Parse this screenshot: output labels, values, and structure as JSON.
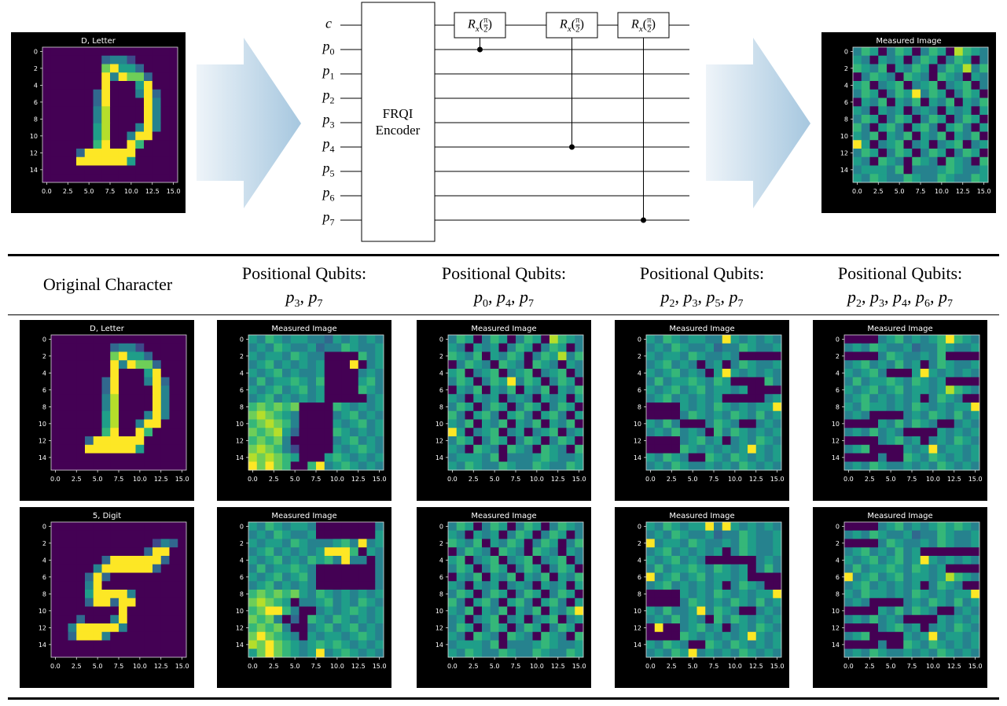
{
  "circuit": {
    "wires": [
      {
        "symbol": "c"
      },
      {
        "symbol": "p",
        "index": "0"
      },
      {
        "symbol": "p",
        "index": "1"
      },
      {
        "symbol": "p",
        "index": "2"
      },
      {
        "symbol": "p",
        "index": "3"
      },
      {
        "symbol": "p",
        "index": "4"
      },
      {
        "symbol": "p",
        "index": "5"
      },
      {
        "symbol": "p",
        "index": "6"
      },
      {
        "symbol": "p",
        "index": "7"
      }
    ],
    "encoder": [
      "FRQI",
      "Encoder"
    ],
    "gate": {
      "symbol": "R",
      "sub": "x",
      "open": "(",
      "num": "π",
      "den": "2",
      "close": ")"
    },
    "gates": [
      {
        "control": 1
      },
      {
        "control": 5
      },
      {
        "control": 8
      }
    ]
  },
  "axes": {
    "yticks": [
      0,
      2,
      4,
      6,
      8,
      10,
      12,
      14
    ],
    "xticks": [
      {
        "value": 0,
        "label": "0.0"
      },
      {
        "value": 2.5,
        "label": "2.5"
      },
      {
        "value": 5,
        "label": "5.0"
      },
      {
        "value": 7.5,
        "label": "7.5"
      },
      {
        "value": 10,
        "label": "10.0"
      },
      {
        "value": 12.5,
        "label": "12.5"
      },
      {
        "value": 15,
        "label": "15.0"
      }
    ]
  },
  "top_panels": [
    {
      "title": "D, Letter",
      "image": "D"
    },
    {
      "title": "Measured Image",
      "image": "m2"
    }
  ],
  "qubit_symbol": "p",
  "separator": ", ",
  "headers": [
    {
      "title": "Original Character"
    },
    {
      "title": "Positional Qubits:",
      "qubits": [
        "3",
        "7"
      ]
    },
    {
      "title": "Positional Qubits:",
      "qubits": [
        "0",
        "4",
        "7"
      ]
    },
    {
      "title": "Positional Qubits:",
      "qubits": [
        "2",
        "3",
        "5",
        "7"
      ]
    },
    {
      "title": "Positional Qubits:",
      "qubits": [
        "2",
        "3",
        "4",
        "6",
        "7"
      ]
    }
  ],
  "rows": [
    [
      {
        "title": "D, Letter",
        "image": "D"
      },
      {
        "title": "Measured Image",
        "image": "m1"
      },
      {
        "title": "Measured Image",
        "image": "m2"
      },
      {
        "title": "Measured Image",
        "image": "m3"
      },
      {
        "title": "Measured Image",
        "image": "m4"
      }
    ],
    [
      {
        "title": "5, Digit",
        "image": "five"
      },
      {
        "title": "Measured Image",
        "image": "m5"
      },
      {
        "title": "Measured Image",
        "image": "m6"
      },
      {
        "title": "Measured Image",
        "image": "m7"
      },
      {
        "title": "Measured Image",
        "image": "m8"
      }
    ]
  ],
  "images": {
    "D": [
      "0000000000000000",
      "0000000344200000",
      "0000000795530000",
      "0000000949773000",
      "0000000900059000",
      "0000003900049300",
      "0000003900009400",
      "0000004800009400",
      "0000004800009400",
      "0000005800049400",
      "0000005800499000",
      "0000006900960000",
      "0000399999900000",
      "0000999999500000",
      "0000000000000000",
      "0000000000000000"
    ],
    "five": [
      "0000000000000000",
      "0000000000000000",
      "0000000000002430",
      "0000000000039900",
      "0000003999999300",
      "0000049999993000",
      "0000393000000000",
      "0000490000000000",
      "0000599994000000",
      "0000399399000000",
      "0000000090000000",
      "0003000490000000",
      "0049999940000000",
      "0039994000000000",
      "0000000000000000",
      "0000000000000000"
    ],
    "m1": [
      "5465455443545454",
      "4546544534465445",
      "5455465440000645",
      "4564545450009045",
      "5456454450000454",
      "4645565460000564",
      "5456456450000654",
      "4564545450000045",
      "6767670000654545",
      "7876540000456454",
      "6787640000545645",
      "7678530000654545",
      "6767400000456454",
      "7876420000545654",
      "8787650005654545",
      "9797600694565454"
    ],
    "m2": [
      "4650465046508654",
      "5405450465046504",
      "6546054650465846",
      "0465406540654054",
      "5604560456045604",
      "4650465946504650",
      "0546054605460546",
      "5405450454054505",
      "4650465046504650",
      "6405640564056405",
      "5460546054605460",
      "9504560450456045",
      "4650465046504650",
      "5406540654065406",
      "4555460444565445",
      "5465446544654465"
    ],
    "m3": [
      "5465455449545454",
      "4546544534465445",
      "5455465445400000",
      "4564540450465445",
      "5456454059545454",
      "4645565465000064",
      "5456456455450000",
      "4564545450000045",
      "0000545465454559",
      "0000465454654645",
      "5464000465400454",
      "4546454064654545",
      "0000456450454654",
      "0000654545459545",
      "5465400654654545",
      "4546544545465454"
    ],
    "m4": [
      "0000456454569654",
      "4546544534465445",
      "0000465445460000",
      "4564546450465445",
      "5456400059545454",
      "4645565465450000",
      "5456456455458654",
      "4564545450465400",
      "5465545465454559",
      "4540000454654645",
      "0000546465400454",
      "4546454000054545",
      "0000456450454654",
      "4560000545945545",
      "0000400654654545",
      "4546544545465454"
    ],
    "m5": [
      "5465455400000004",
      "4546544500000005",
      "5455465444564945",
      "4564545459996054",
      "5456454656494404",
      "4645565400000004",
      "5456456400000004",
      "4564545400000004",
      "6767675465454545",
      "7876504456454654",
      "6799640045456545",
      "7674030654654545",
      "6767400456456454",
      "7976540545545654",
      "8797654565654545",
      "5797654594565454"
    ],
    "m6": [
      "4650465046504654",
      "5405450465046504",
      "6546054650465046",
      "0465406540654054",
      "5604560456045604",
      "4650465046504650",
      "0546054605460546",
      "5405450454054505",
      "4650465046504650",
      "6405640564056405",
      "5460546054605469",
      "4504560450456045",
      "4650465046504650",
      "5406540654065406",
      "4555460444565445",
      "5465446544654465"
    ],
    "m7": [
      "5465455949545454",
      "4546544534465445",
      "9455465445465445",
      "4564545450465445",
      "5456454000000454",
      "4645565465450464",
      "9456456455450000",
      "4564545450465400",
      "0000545465454559",
      "0000465454654645",
      "5464459465400454",
      "4546454064654545",
      "0900456450454654",
      "0000654545459545",
      "5465400654654545",
      "4546594545465454"
    ],
    "m8": [
      "0000456454565654",
      "4546544534465445",
      "0000465445465445",
      "4564546450000000",
      "5456456459545454",
      "4645565465450000",
      "9456456455458654",
      "4564545450465400",
      "5465545465454559",
      "4540000454654645",
      "0000546465400454",
      "4546454000054545",
      "0000456450454654",
      "4560000545945545",
      "0000400654654545",
      "4546544545465454"
    ]
  }
}
